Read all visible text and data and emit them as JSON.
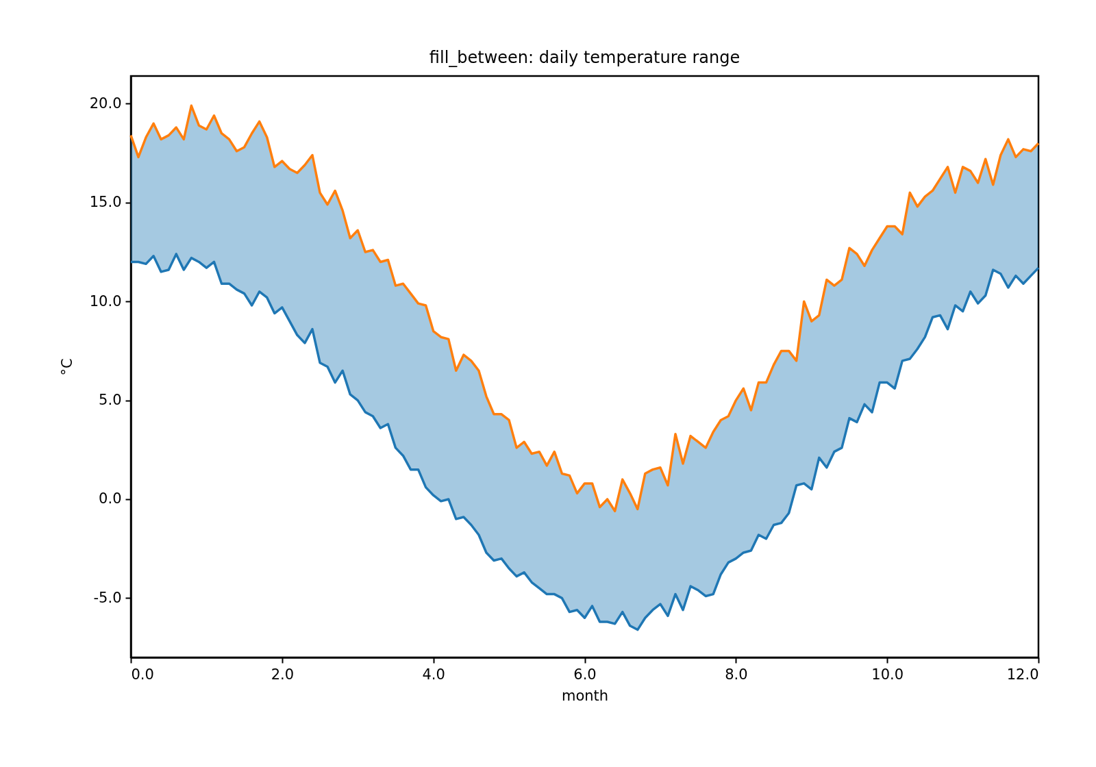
{
  "chart_data": {
    "type": "line",
    "title": "fill_between: daily temperature range",
    "xlabel": "month",
    "ylabel": "°C",
    "x": [
      0,
      0.1,
      0.2,
      0.3,
      0.4,
      0.5,
      0.6,
      0.7,
      0.8,
      0.9,
      1,
      1.1,
      1.2,
      1.3,
      1.4,
      1.5,
      1.6,
      1.7,
      1.8,
      1.9,
      2,
      2.1,
      2.2,
      2.3,
      2.4,
      2.5,
      2.6,
      2.7,
      2.8,
      2.9,
      3,
      3.1,
      3.2,
      3.3,
      3.4,
      3.5,
      3.6,
      3.7,
      3.8,
      3.9,
      4,
      4.1,
      4.2,
      4.3,
      4.4,
      4.5,
      4.6,
      4.7,
      4.8,
      4.9,
      5,
      5.1,
      5.2,
      5.3,
      5.4,
      5.5,
      5.6,
      5.7,
      5.8,
      5.9,
      6,
      6.1,
      6.2,
      6.3,
      6.4,
      6.5,
      6.6,
      6.7,
      6.8,
      6.9,
      7,
      7.1,
      7.2,
      7.3,
      7.4,
      7.5,
      7.6,
      7.7,
      7.8,
      7.9,
      8,
      8.1,
      8.2,
      8.3,
      8.4,
      8.5,
      8.6,
      8.7,
      8.8,
      8.9,
      9,
      9.1,
      9.2,
      9.3,
      9.4,
      9.5,
      9.6,
      9.7,
      9.8,
      9.9,
      10,
      10.1,
      10.2,
      10.3,
      10.4,
      10.5,
      10.6,
      10.7,
      10.8,
      10.9,
      11,
      11.1,
      11.2,
      11.3,
      11.4,
      11.5,
      11.6,
      11.7,
      11.8,
      11.9,
      12
    ],
    "xlim": [
      0,
      12
    ],
    "ylim": [
      -8,
      21.4
    ],
    "xticks": [
      {
        "value": 0,
        "label": "0.0"
      },
      {
        "value": 2,
        "label": "2.0"
      },
      {
        "value": 4,
        "label": "4.0"
      },
      {
        "value": 6,
        "label": "6.0"
      },
      {
        "value": 8,
        "label": "8.0"
      },
      {
        "value": 10,
        "label": "10.0"
      },
      {
        "value": 12,
        "label": "12.0"
      }
    ],
    "yticks": [
      {
        "value": -5,
        "label": "-5.0"
      },
      {
        "value": 0,
        "label": "0.0"
      },
      {
        "value": 5,
        "label": "5.0"
      },
      {
        "value": 10,
        "label": "10.0"
      },
      {
        "value": 15,
        "label": "15.0"
      },
      {
        "value": 20,
        "label": "20.0"
      }
    ],
    "series": [
      {
        "color": "#1f77b4",
        "values": [
          12.0,
          12.0,
          11.9,
          12.3,
          11.5,
          11.6,
          12.4,
          11.6,
          12.2,
          12.0,
          11.7,
          12.0,
          10.9,
          10.9,
          10.6,
          10.4,
          9.8,
          10.5,
          10.2,
          9.4,
          9.7,
          9.0,
          8.3,
          7.9,
          8.6,
          6.9,
          6.7,
          5.9,
          6.5,
          5.3,
          5.0,
          4.4,
          4.2,
          3.6,
          3.8,
          2.6,
          2.2,
          1.5,
          1.5,
          0.6,
          0.2,
          -0.1,
          0.0,
          -1.0,
          -0.9,
          -1.3,
          -1.8,
          -2.7,
          -3.1,
          -3.0,
          -3.5,
          -3.9,
          -3.7,
          -4.2,
          -4.5,
          -4.8,
          -4.8,
          -5.0,
          -5.7,
          -5.6,
          -6.0,
          -5.4,
          -6.2,
          -6.2,
          -6.3,
          -5.7,
          -6.4,
          -6.6,
          -6.0,
          -5.6,
          -5.3,
          -5.9,
          -4.8,
          -5.6,
          -4.4,
          -4.6,
          -4.9,
          -4.8,
          -3.8,
          -3.2,
          -3.0,
          -2.7,
          -2.6,
          -1.8,
          -2.0,
          -1.3,
          -1.2,
          -0.7,
          0.7,
          0.8,
          0.5,
          2.1,
          1.6,
          2.4,
          2.6,
          4.1,
          3.9,
          4.8,
          4.4,
          5.9,
          5.9,
          5.6,
          7.0,
          7.1,
          7.6,
          8.2,
          9.2,
          9.3,
          8.6,
          9.8,
          9.5,
          10.5,
          9.9,
          10.3,
          11.6,
          11.4,
          10.7,
          11.3,
          10.9,
          11.3,
          11.7
        ],
        "lower": [
          12.0,
          12.0,
          11.9,
          12.3,
          11.5,
          11.6,
          12.4,
          11.6,
          12.2,
          12.0,
          11.7,
          12.0,
          10.9,
          10.9,
          10.6,
          10.4,
          9.8,
          10.5,
          10.2,
          9.4,
          9.7,
          9.0,
          8.3,
          7.9,
          8.6,
          6.9,
          6.7,
          5.9,
          6.5,
          5.3,
          5.0,
          4.4,
          4.2,
          3.6,
          3.8,
          2.6,
          2.2,
          1.5,
          1.5,
          0.6,
          0.2,
          -0.1,
          0.0,
          -1.0,
          -0.9,
          -1.3,
          -1.8,
          -2.7,
          -3.1,
          -3.0,
          -3.5,
          -3.9,
          -3.7,
          -4.2,
          -4.5,
          -4.8,
          -4.8,
          -5.0,
          -5.7,
          -5.6,
          -6.0,
          -5.4,
          -6.2,
          -6.2,
          -6.3,
          -5.7,
          -6.4,
          -6.6,
          -6.0,
          -5.6,
          -5.3,
          -5.9,
          -4.8,
          -5.6,
          -4.4,
          -4.6,
          -4.9,
          -4.8,
          -3.8,
          -3.2,
          -3.0,
          -2.7,
          -2.6,
          -1.8,
          -2.0,
          -1.3,
          -1.2,
          -0.7,
          0.7,
          0.8,
          0.5,
          2.1,
          1.6,
          2.4,
          2.6,
          4.1,
          3.9,
          4.8,
          4.4,
          5.9,
          5.9,
          5.6,
          7.0,
          7.1,
          7.6,
          8.2,
          9.2,
          9.3,
          8.6,
          9.8,
          9.5,
          10.5,
          9.9,
          10.3,
          11.6,
          11.4,
          10.7,
          11.3,
          10.9,
          11.3,
          11.7
        ],
        "upper": [
          18.4,
          17.3,
          18.3,
          19.0,
          18.2,
          18.4,
          18.8,
          18.2,
          19.9,
          18.9,
          18.7,
          19.4,
          18.5,
          18.2,
          17.6,
          17.8,
          18.5,
          19.1,
          18.3,
          16.8,
          17.1,
          16.7,
          16.5,
          16.9,
          17.4,
          15.5,
          14.9,
          15.6,
          14.6,
          13.2,
          13.6,
          12.5,
          12.6,
          12.0,
          12.1,
          10.8,
          10.9,
          10.4,
          9.9,
          9.8,
          8.5,
          8.2,
          8.1,
          6.5,
          7.3,
          7.0,
          6.5,
          5.2,
          4.3,
          4.3,
          4.0,
          2.6,
          2.9,
          2.3,
          2.4,
          1.7,
          2.4,
          1.3,
          1.2,
          0.3,
          0.8,
          0.8,
          -0.4,
          0.0,
          -0.6,
          1.0,
          0.3,
          -0.5,
          1.3,
          1.5,
          1.6,
          0.7,
          3.3,
          1.8,
          3.2,
          2.9,
          2.6,
          3.4,
          4.0,
          4.2,
          5.0,
          5.6,
          4.5,
          5.9,
          5.9,
          6.8,
          7.5,
          7.5,
          7.0,
          10.0,
          9.0,
          9.3,
          11.1,
          10.8,
          11.1,
          12.7,
          12.4,
          11.8,
          12.6,
          13.2,
          13.8,
          13.8,
          13.4,
          15.5,
          14.8,
          15.3,
          15.6,
          16.2,
          16.8,
          15.5,
          16.8,
          16.6,
          16.0,
          17.2,
          15.9,
          17.4,
          18.2,
          17.3,
          17.7,
          17.6,
          18.0
        ]
      },
      {
        "color": "#ff7f0e",
        "values": [
          18.4,
          17.3,
          18.3,
          19.0,
          18.2,
          18.4,
          18.8,
          18.2,
          19.9,
          18.9,
          18.7,
          19.4,
          18.5,
          18.2,
          17.6,
          17.8,
          18.5,
          19.1,
          18.3,
          16.8,
          17.1,
          16.7,
          16.5,
          16.9,
          17.4,
          15.5,
          14.9,
          15.6,
          14.6,
          13.2,
          13.6,
          12.5,
          12.6,
          12.0,
          12.1,
          10.8,
          10.9,
          10.4,
          9.9,
          9.8,
          8.5,
          8.2,
          8.1,
          6.5,
          7.3,
          7.0,
          6.5,
          5.2,
          4.3,
          4.3,
          4.0,
          2.6,
          2.9,
          2.3,
          2.4,
          1.7,
          2.4,
          1.3,
          1.2,
          0.3,
          0.8,
          0.8,
          -0.4,
          0.0,
          -0.6,
          1.0,
          0.3,
          -0.5,
          1.3,
          1.5,
          1.6,
          0.7,
          3.3,
          1.8,
          3.2,
          2.9,
          2.6,
          3.4,
          4.0,
          4.2,
          5.0,
          5.6,
          4.5,
          5.9,
          5.9,
          6.8,
          7.5,
          7.5,
          7.0,
          10.0,
          9.0,
          9.3,
          11.1,
          10.8,
          11.1,
          12.7,
          12.4,
          11.8,
          12.6,
          13.2,
          13.8,
          13.8,
          13.4,
          15.5,
          14.8,
          15.3,
          15.6,
          16.2,
          16.8,
          15.5,
          16.8,
          16.6,
          16.0,
          17.2,
          15.9,
          17.4,
          18.2,
          17.3,
          17.7,
          17.6,
          18.0
        ]
      }
    ]
  }
}
